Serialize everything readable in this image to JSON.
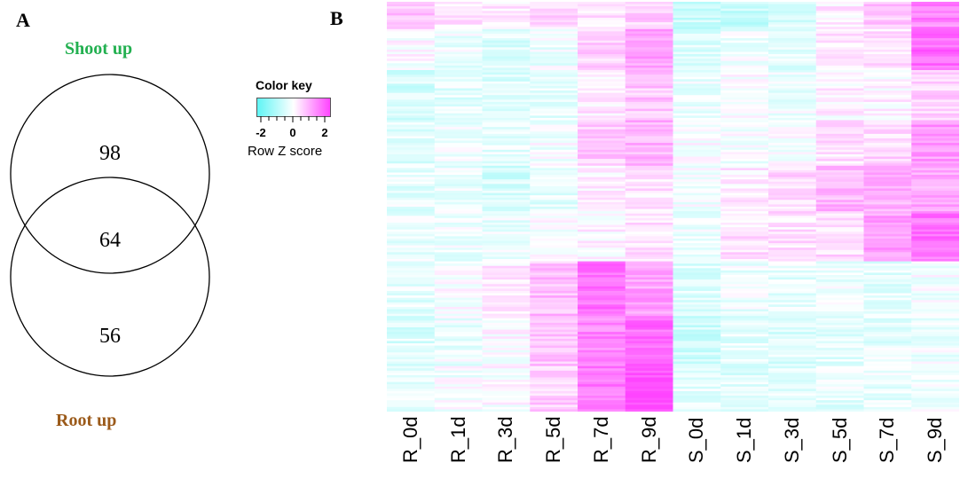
{
  "panel_a": {
    "letter": "A",
    "title_top": "Shoot up",
    "title_bottom": "Root up",
    "colors": {
      "shoot": "#22b050",
      "root": "#9b5a1a"
    }
  },
  "panel_b": {
    "letter": "B"
  },
  "color_key": {
    "title": "Color key",
    "tick_labels": [
      "-2",
      "0",
      "2"
    ],
    "subtitle": "Row Z score",
    "colors": {
      "low": "#5ff5f5",
      "mid": "#ffffff",
      "high": "#ff44ff"
    }
  },
  "chart_data": [
    {
      "type": "venn",
      "sets": [
        "Shoot up",
        "Root up"
      ],
      "regions": {
        "Shoot up only": 98,
        "both": 64,
        "Root up only": 56
      }
    },
    {
      "type": "heatmap",
      "columns": [
        "R_0d",
        "R_1d",
        "R_3d",
        "R_5d",
        "R_7d",
        "R_9d",
        "S_0d",
        "S_1d",
        "S_3d",
        "S_5d",
        "S_7d",
        "S_9d"
      ],
      "value_label": "Row Z score",
      "range": [
        -2,
        2
      ],
      "row_blocks": [
        {
          "rows": 12,
          "values": [
            0.6,
            0.3,
            0.2,
            0.4,
            0.3,
            0.5,
            -0.6,
            -0.7,
            -0.4,
            0.2,
            0.6,
            1.3
          ]
        },
        {
          "rows": 18,
          "values": [
            0.0,
            -0.2,
            -0.4,
            -0.2,
            0.5,
            1.0,
            -0.4,
            -0.2,
            -0.3,
            0.2,
            0.3,
            1.6
          ]
        },
        {
          "rows": 22,
          "values": [
            -0.5,
            -0.3,
            -0.4,
            -0.3,
            0.2,
            0.6,
            -0.2,
            0.0,
            -0.2,
            0.1,
            0.1,
            0.5
          ]
        },
        {
          "rows": 20,
          "values": [
            -0.4,
            -0.2,
            -0.3,
            -0.1,
            0.6,
            0.8,
            0.0,
            -0.1,
            -0.1,
            0.3,
            0.4,
            1.1
          ]
        },
        {
          "rows": 20,
          "values": [
            -0.3,
            -0.2,
            -0.5,
            -0.3,
            0.1,
            0.3,
            -0.1,
            0.2,
            0.4,
            0.8,
            0.8,
            0.9
          ]
        },
        {
          "rows": 22,
          "values": [
            -0.3,
            -0.2,
            -0.2,
            0.0,
            0.1,
            0.3,
            -0.2,
            0.3,
            0.3,
            0.4,
            1.0,
            1.5
          ]
        },
        {
          "rows": 24,
          "values": [
            -0.3,
            0.0,
            0.2,
            0.7,
            1.5,
            1.0,
            -0.4,
            -0.2,
            -0.3,
            -0.2,
            -0.3,
            -0.1
          ]
        },
        {
          "rows": 22,
          "values": [
            -0.4,
            -0.2,
            0.0,
            0.6,
            1.3,
            1.6,
            -0.6,
            -0.3,
            -0.4,
            -0.3,
            -0.3,
            -0.2
          ]
        },
        {
          "rows": 20,
          "values": [
            -0.2,
            -0.1,
            0.0,
            0.5,
            1.4,
            1.9,
            -0.3,
            -0.4,
            -0.3,
            -0.3,
            -0.3,
            -0.2
          ]
        }
      ]
    }
  ]
}
